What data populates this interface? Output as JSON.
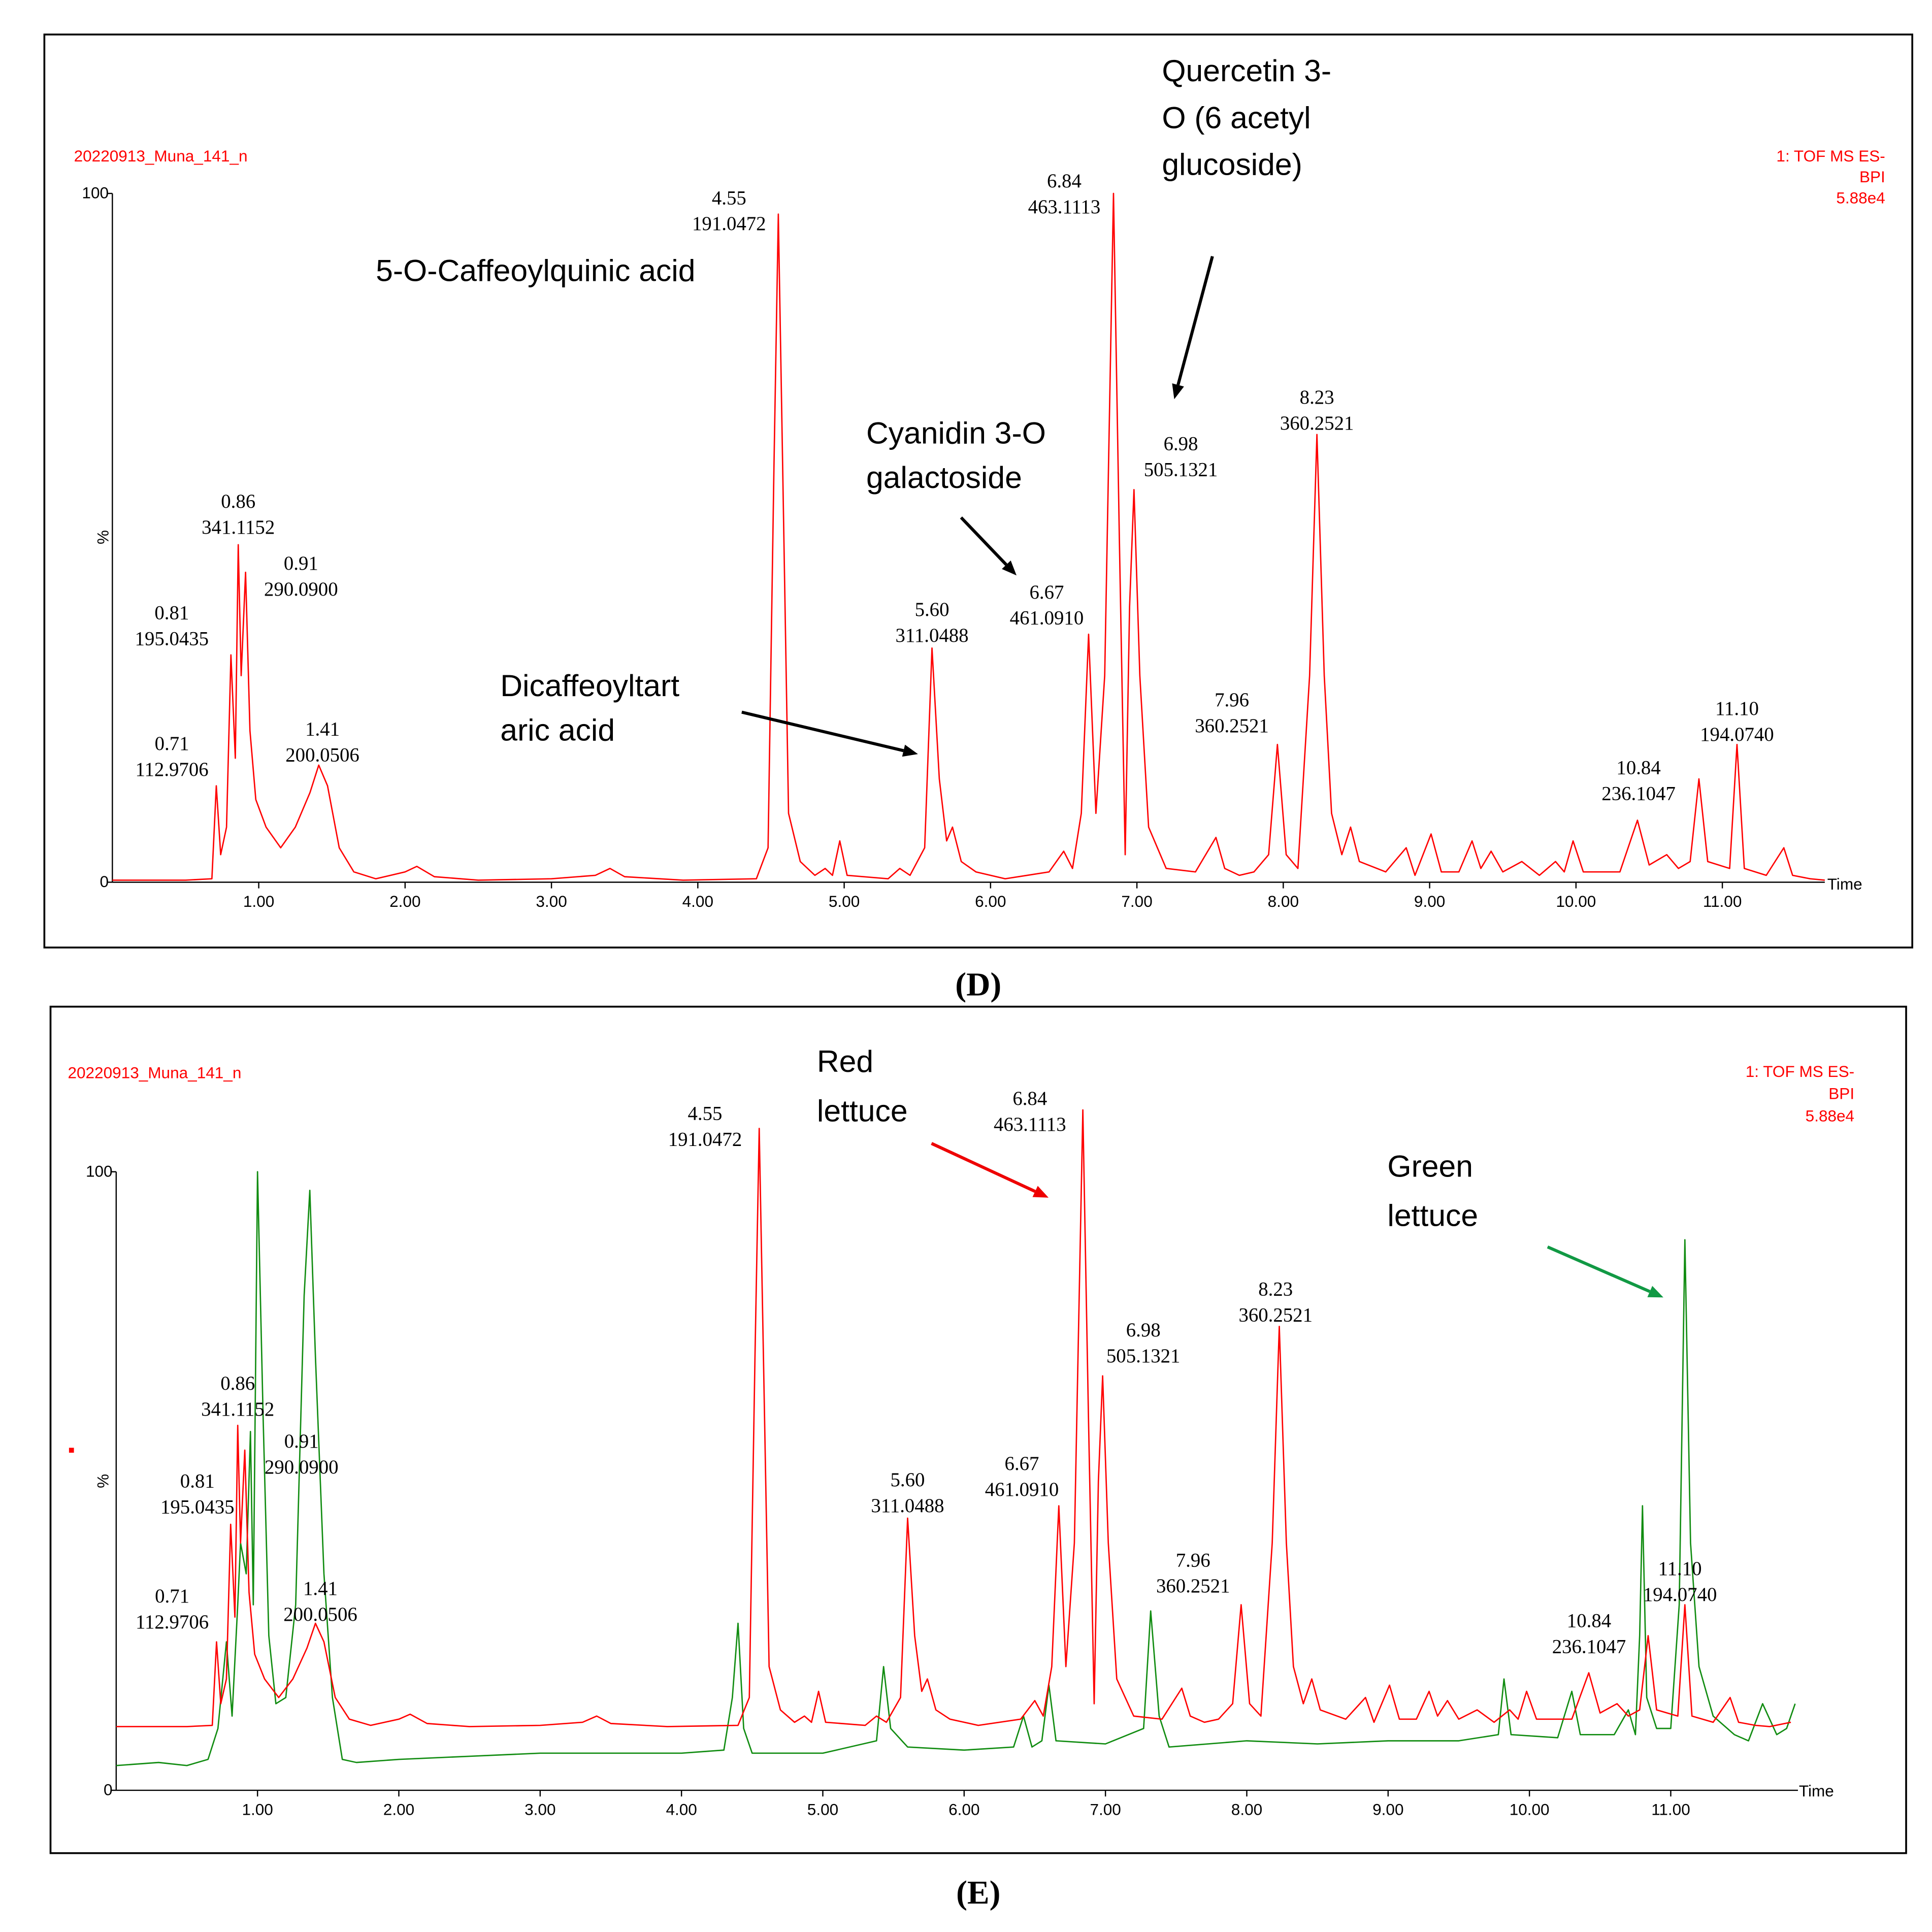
{
  "chart_data": [
    {
      "type": "line",
      "title": "(D)",
      "sample": "20220913_Muna_141_n",
      "detector": [
        "1: TOF MS ES-",
        "BPI",
        "5.88e4"
      ],
      "ylabel": "%",
      "xlabel": "Time",
      "xlim": [
        0,
        11.7
      ],
      "ylim": [
        0,
        100
      ],
      "xticks": [
        {
          "value": 1,
          "label": "1.00"
        },
        {
          "value": 2,
          "label": "2.00"
        },
        {
          "value": 3,
          "label": "3.00"
        },
        {
          "value": 4,
          "label": "4.00"
        },
        {
          "value": 5,
          "label": "5.00"
        },
        {
          "value": 6,
          "label": "6.00"
        },
        {
          "value": 7,
          "label": "7.00"
        },
        {
          "value": 8,
          "label": "8.00"
        },
        {
          "value": 9,
          "label": "9.00"
        },
        {
          "value": 10,
          "label": "10.00"
        },
        {
          "value": 11,
          "label": "11.00"
        }
      ],
      "yticks": [
        0,
        100
      ],
      "grid": false,
      "series": [
        {
          "color": "#ff0000",
          "x": [
            0,
            0.5,
            0.68,
            0.71,
            0.74,
            0.78,
            0.81,
            0.84,
            0.86,
            0.88,
            0.91,
            0.94,
            0.98,
            1.05,
            1.15,
            1.25,
            1.35,
            1.41,
            1.47,
            1.55,
            1.65,
            1.8,
            2.0,
            2.08,
            2.2,
            2.5,
            3.0,
            3.3,
            3.4,
            3.5,
            3.9,
            4.4,
            4.48,
            4.52,
            4.55,
            4.58,
            4.62,
            4.7,
            4.8,
            4.87,
            4.92,
            4.97,
            5.02,
            5.3,
            5.38,
            5.45,
            5.55,
            5.6,
            5.65,
            5.7,
            5.74,
            5.8,
            5.9,
            6.1,
            6.4,
            6.5,
            6.56,
            6.62,
            6.67,
            6.72,
            6.78,
            6.84,
            6.88,
            6.92,
            6.95,
            6.98,
            7.02,
            7.08,
            7.2,
            7.4,
            7.54,
            7.6,
            7.7,
            7.8,
            7.9,
            7.96,
            8.02,
            8.1,
            8.18,
            8.23,
            8.28,
            8.33,
            8.4,
            8.46,
            8.52,
            8.7,
            8.84,
            8.9,
            9.01,
            9.08,
            9.2,
            9.29,
            9.35,
            9.42,
            9.5,
            9.63,
            9.75,
            9.86,
            9.92,
            9.98,
            10.05,
            10.3,
            10.42,
            10.5,
            10.62,
            10.7,
            10.78,
            10.84,
            10.9,
            11.05,
            11.1,
            11.15,
            11.3,
            11.42,
            11.48,
            11.6,
            11.7
          ],
          "values": [
            0.3,
            0.3,
            0.5,
            14,
            4,
            8,
            33,
            18,
            49,
            30,
            45,
            22,
            12,
            8,
            5,
            8,
            13,
            17,
            14,
            5,
            1.5,
            0.5,
            1.5,
            2.3,
            0.8,
            0.3,
            0.5,
            1,
            2,
            0.8,
            0.3,
            0.5,
            5,
            60,
            97,
            60,
            10,
            3,
            1,
            2,
            1,
            6,
            1,
            0.5,
            2,
            1,
            5,
            34,
            15,
            6,
            8,
            3,
            1.5,
            0.5,
            1.5,
            4.5,
            2,
            10,
            36,
            10,
            30,
            100,
            50,
            4,
            40,
            57,
            30,
            8,
            2,
            1.5,
            6.5,
            2,
            1,
            1.5,
            4,
            20,
            4,
            2,
            30,
            65,
            30,
            10,
            4,
            8,
            3,
            1.5,
            5,
            1,
            7,
            1.5,
            1.5,
            6,
            2,
            4.5,
            1.5,
            3,
            1,
            3,
            1.5,
            6,
            1.5,
            1.5,
            9,
            2.5,
            4,
            2,
            3,
            15,
            3,
            2,
            20,
            2,
            1,
            5,
            1,
            0.5,
            0.3
          ]
        }
      ],
      "annotations": [
        {
          "lines": [
            "0.71",
            "112.9706"
          ],
          "x": 0.71,
          "y": 14
        },
        {
          "lines": [
            "0.81",
            "195.0435"
          ],
          "x": 0.81,
          "y": 33
        },
        {
          "lines": [
            "0.86",
            "341.1152"
          ],
          "x": 0.86,
          "y": 49
        },
        {
          "lines": [
            "0.91",
            "290.0900"
          ],
          "x": 0.91,
          "y": 45
        },
        {
          "lines": [
            "1.41",
            "200.0506"
          ],
          "x": 1.41,
          "y": 17
        },
        {
          "lines": [
            "4.55",
            "191.0472"
          ],
          "x": 4.55,
          "y": 97
        },
        {
          "lines": [
            "5.60",
            "311.0488"
          ],
          "x": 5.6,
          "y": 34
        },
        {
          "lines": [
            "6.67",
            "461.0910"
          ],
          "x": 6.67,
          "y": 36
        },
        {
          "lines": [
            "6.84",
            "463.1113"
          ],
          "x": 6.84,
          "y": 100
        },
        {
          "lines": [
            "6.98",
            "505.1321"
          ],
          "x": 6.98,
          "y": 57
        },
        {
          "lines": [
            "7.96",
            "360.2521"
          ],
          "x": 7.96,
          "y": 20
        },
        {
          "lines": [
            "8.23",
            "360.2521"
          ],
          "x": 8.23,
          "y": 65
        },
        {
          "lines": [
            "10.84",
            "236.1047"
          ],
          "x": 10.84,
          "y": 15
        },
        {
          "lines": [
            "11.10",
            "194.0740"
          ],
          "x": 11.1,
          "y": 20
        }
      ],
      "callouts": [
        {
          "lines": [
            "5-O-Caffeoylquinic acid"
          ],
          "arrow_color": "#000000"
        },
        {
          "lines": [
            "Cyanidin 3-O",
            "galactoside"
          ],
          "arrow_color": "#000000"
        },
        {
          "lines": [
            "Quercetin 3-",
            "O (6 acetyl",
            "glucoside)"
          ],
          "arrow_color": "#000000"
        },
        {
          "lines": [
            "Dicaffeoyltart",
            "aric acid"
          ],
          "arrow_color": "#000000"
        }
      ]
    },
    {
      "type": "line",
      "title": "(E)",
      "sample": "20220913_Muna_141_n",
      "detector": [
        "1: TOF MS ES-",
        "BPI",
        "5.88e4"
      ],
      "ylabel": "%",
      "xlabel": "Time",
      "xlim": [
        0,
        11.9
      ],
      "ylim": [
        0,
        100
      ],
      "xticks": [
        {
          "value": 1,
          "label": "1.00"
        },
        {
          "value": 2,
          "label": "2.00"
        },
        {
          "value": 3,
          "label": "3.00"
        },
        {
          "value": 4,
          "label": "4.00"
        },
        {
          "value": 5,
          "label": "5.00"
        },
        {
          "value": 6,
          "label": "6.00"
        },
        {
          "value": 7,
          "label": "7.00"
        },
        {
          "value": 8,
          "label": "8.00"
        },
        {
          "value": 9,
          "label": "9.00"
        },
        {
          "value": 10,
          "label": "10.00"
        },
        {
          "value": 11,
          "label": "11.00"
        }
      ],
      "yticks": [
        0,
        100
      ],
      "grid": false,
      "series": [
        {
          "color": "#118c11",
          "x": [
            0,
            0.3,
            0.5,
            0.65,
            0.72,
            0.78,
            0.82,
            0.86,
            0.88,
            0.92,
            0.95,
            0.97,
            1.0,
            1.04,
            1.08,
            1.13,
            1.2,
            1.27,
            1.33,
            1.37,
            1.41,
            1.47,
            1.53,
            1.6,
            1.7,
            2.0,
            2.5,
            3.0,
            3.5,
            4.0,
            4.3,
            4.36,
            4.4,
            4.44,
            4.5,
            5.0,
            5.38,
            5.43,
            5.48,
            5.6,
            6.0,
            6.35,
            6.42,
            6.48,
            6.55,
            6.6,
            6.65,
            7.0,
            7.27,
            7.32,
            7.38,
            7.45,
            8.0,
            8.5,
            9.0,
            9.5,
            9.78,
            9.82,
            9.87,
            10.2,
            10.3,
            10.36,
            10.6,
            10.7,
            10.75,
            10.78,
            10.8,
            10.83,
            10.9,
            11.0,
            11.06,
            11.1,
            11.14,
            11.2,
            11.3,
            11.45,
            11.55,
            11.65,
            11.75,
            11.82,
            11.88
          ],
          "values": [
            4,
            4.5,
            4,
            5,
            10,
            24,
            12,
            30,
            40,
            35,
            58,
            30,
            100,
            60,
            25,
            14,
            15,
            30,
            80,
            97,
            70,
            35,
            15,
            5,
            4.5,
            5,
            5.5,
            6,
            6,
            6,
            6.5,
            15,
            27,
            10,
            6,
            6,
            8,
            20,
            10,
            7,
            6.5,
            7,
            12,
            7,
            8,
            17,
            8,
            7.5,
            10,
            29,
            12,
            7,
            8,
            7.5,
            8,
            8,
            9,
            18,
            9,
            8.5,
            16,
            9,
            9,
            13,
            9,
            25,
            46,
            15,
            10,
            10,
            30,
            89,
            40,
            20,
            12,
            9,
            8,
            14,
            9,
            10,
            14
          ]
        },
        {
          "color": "#ff0000",
          "x": [
            0,
            0.5,
            0.68,
            0.71,
            0.74,
            0.78,
            0.81,
            0.84,
            0.86,
            0.88,
            0.91,
            0.94,
            0.98,
            1.05,
            1.15,
            1.25,
            1.35,
            1.41,
            1.47,
            1.55,
            1.65,
            1.8,
            2.0,
            2.08,
            2.2,
            2.5,
            3.0,
            3.3,
            3.4,
            3.5,
            3.9,
            4.4,
            4.48,
            4.52,
            4.55,
            4.58,
            4.62,
            4.7,
            4.8,
            4.87,
            4.92,
            4.97,
            5.02,
            5.3,
            5.38,
            5.45,
            5.55,
            5.6,
            5.65,
            5.7,
            5.74,
            5.8,
            5.9,
            6.1,
            6.4,
            6.5,
            6.56,
            6.62,
            6.67,
            6.72,
            6.78,
            6.84,
            6.88,
            6.92,
            6.95,
            6.98,
            7.02,
            7.08,
            7.2,
            7.4,
            7.54,
            7.6,
            7.7,
            7.8,
            7.9,
            7.96,
            8.02,
            8.1,
            8.18,
            8.23,
            8.28,
            8.33,
            8.4,
            8.46,
            8.52,
            8.7,
            8.84,
            8.9,
            9.01,
            9.08,
            9.2,
            9.29,
            9.35,
            9.42,
            9.5,
            9.63,
            9.75,
            9.86,
            9.92,
            9.98,
            10.05,
            10.3,
            10.42,
            10.5,
            10.62,
            10.7,
            10.78,
            10.84,
            10.9,
            11.05,
            11.1,
            11.15,
            11.3,
            11.42,
            11.48,
            11.6,
            11.7,
            11.85
          ],
          "values": [
            10.3,
            10.3,
            10.5,
            24,
            14,
            18,
            43,
            28,
            59,
            40,
            55,
            32,
            22,
            18,
            15,
            18,
            23,
            27,
            24,
            15,
            11.5,
            10.5,
            11.5,
            12.3,
            10.8,
            10.3,
            10.5,
            11,
            12,
            10.8,
            10.3,
            10.5,
            15,
            70,
            107,
            70,
            20,
            13,
            11,
            12,
            11,
            16,
            11,
            10.5,
            12,
            11,
            15,
            44,
            25,
            16,
            18,
            13,
            11.5,
            10.5,
            11.5,
            14.5,
            12,
            20,
            46,
            20,
            40,
            110,
            60,
            14,
            50,
            67,
            40,
            18,
            12,
            11.5,
            16.5,
            12,
            11,
            11.5,
            14,
            30,
            14,
            12,
            40,
            75,
            40,
            20,
            14,
            18,
            13,
            11.5,
            15,
            11,
            17,
            11.5,
            11.5,
            16,
            12,
            14.5,
            11.5,
            13,
            11,
            13,
            11.5,
            16,
            11.5,
            11.5,
            19,
            12.5,
            14,
            12,
            13,
            25,
            13,
            12,
            30,
            12,
            11,
            15,
            11,
            10.5,
            10.3,
            11
          ]
        }
      ],
      "annotations": [
        {
          "lines": [
            "0.71",
            "112.9706"
          ],
          "x": 0.71,
          "y": 24
        },
        {
          "lines": [
            "0.81",
            "195.0435"
          ],
          "x": 0.81,
          "y": 43
        },
        {
          "lines": [
            "0.86",
            "341.1152"
          ],
          "x": 0.86,
          "y": 59
        },
        {
          "lines": [
            "0.91",
            "290.0900"
          ],
          "x": 0.91,
          "y": 55
        },
        {
          "lines": [
            "1.41",
            "200.0506"
          ],
          "x": 1.41,
          "y": 27
        },
        {
          "lines": [
            "4.55",
            "191.0472"
          ],
          "x": 4.55,
          "y": 107
        },
        {
          "lines": [
            "5.60",
            "311.0488"
          ],
          "x": 5.6,
          "y": 44
        },
        {
          "lines": [
            "6.67",
            "461.0910"
          ],
          "x": 6.67,
          "y": 46
        },
        {
          "lines": [
            "6.84",
            "463.1113"
          ],
          "x": 6.84,
          "y": 110
        },
        {
          "lines": [
            "6.98",
            "505.1321"
          ],
          "x": 6.98,
          "y": 67
        },
        {
          "lines": [
            "7.96",
            "360.2521"
          ],
          "x": 7.96,
          "y": 30
        },
        {
          "lines": [
            "8.23",
            "360.2521"
          ],
          "x": 8.23,
          "y": 75
        },
        {
          "lines": [
            "10.84",
            "236.1047"
          ],
          "x": 10.84,
          "y": 25
        },
        {
          "lines": [
            "11.10",
            "194.0740"
          ],
          "x": 11.1,
          "y": 30
        }
      ],
      "callouts": [
        {
          "lines": [
            "Red",
            "lettuce"
          ],
          "arrow_color": "#ee0000"
        },
        {
          "lines": [
            "Green",
            "lettuce"
          ],
          "arrow_color": "#119944"
        }
      ]
    }
  ]
}
